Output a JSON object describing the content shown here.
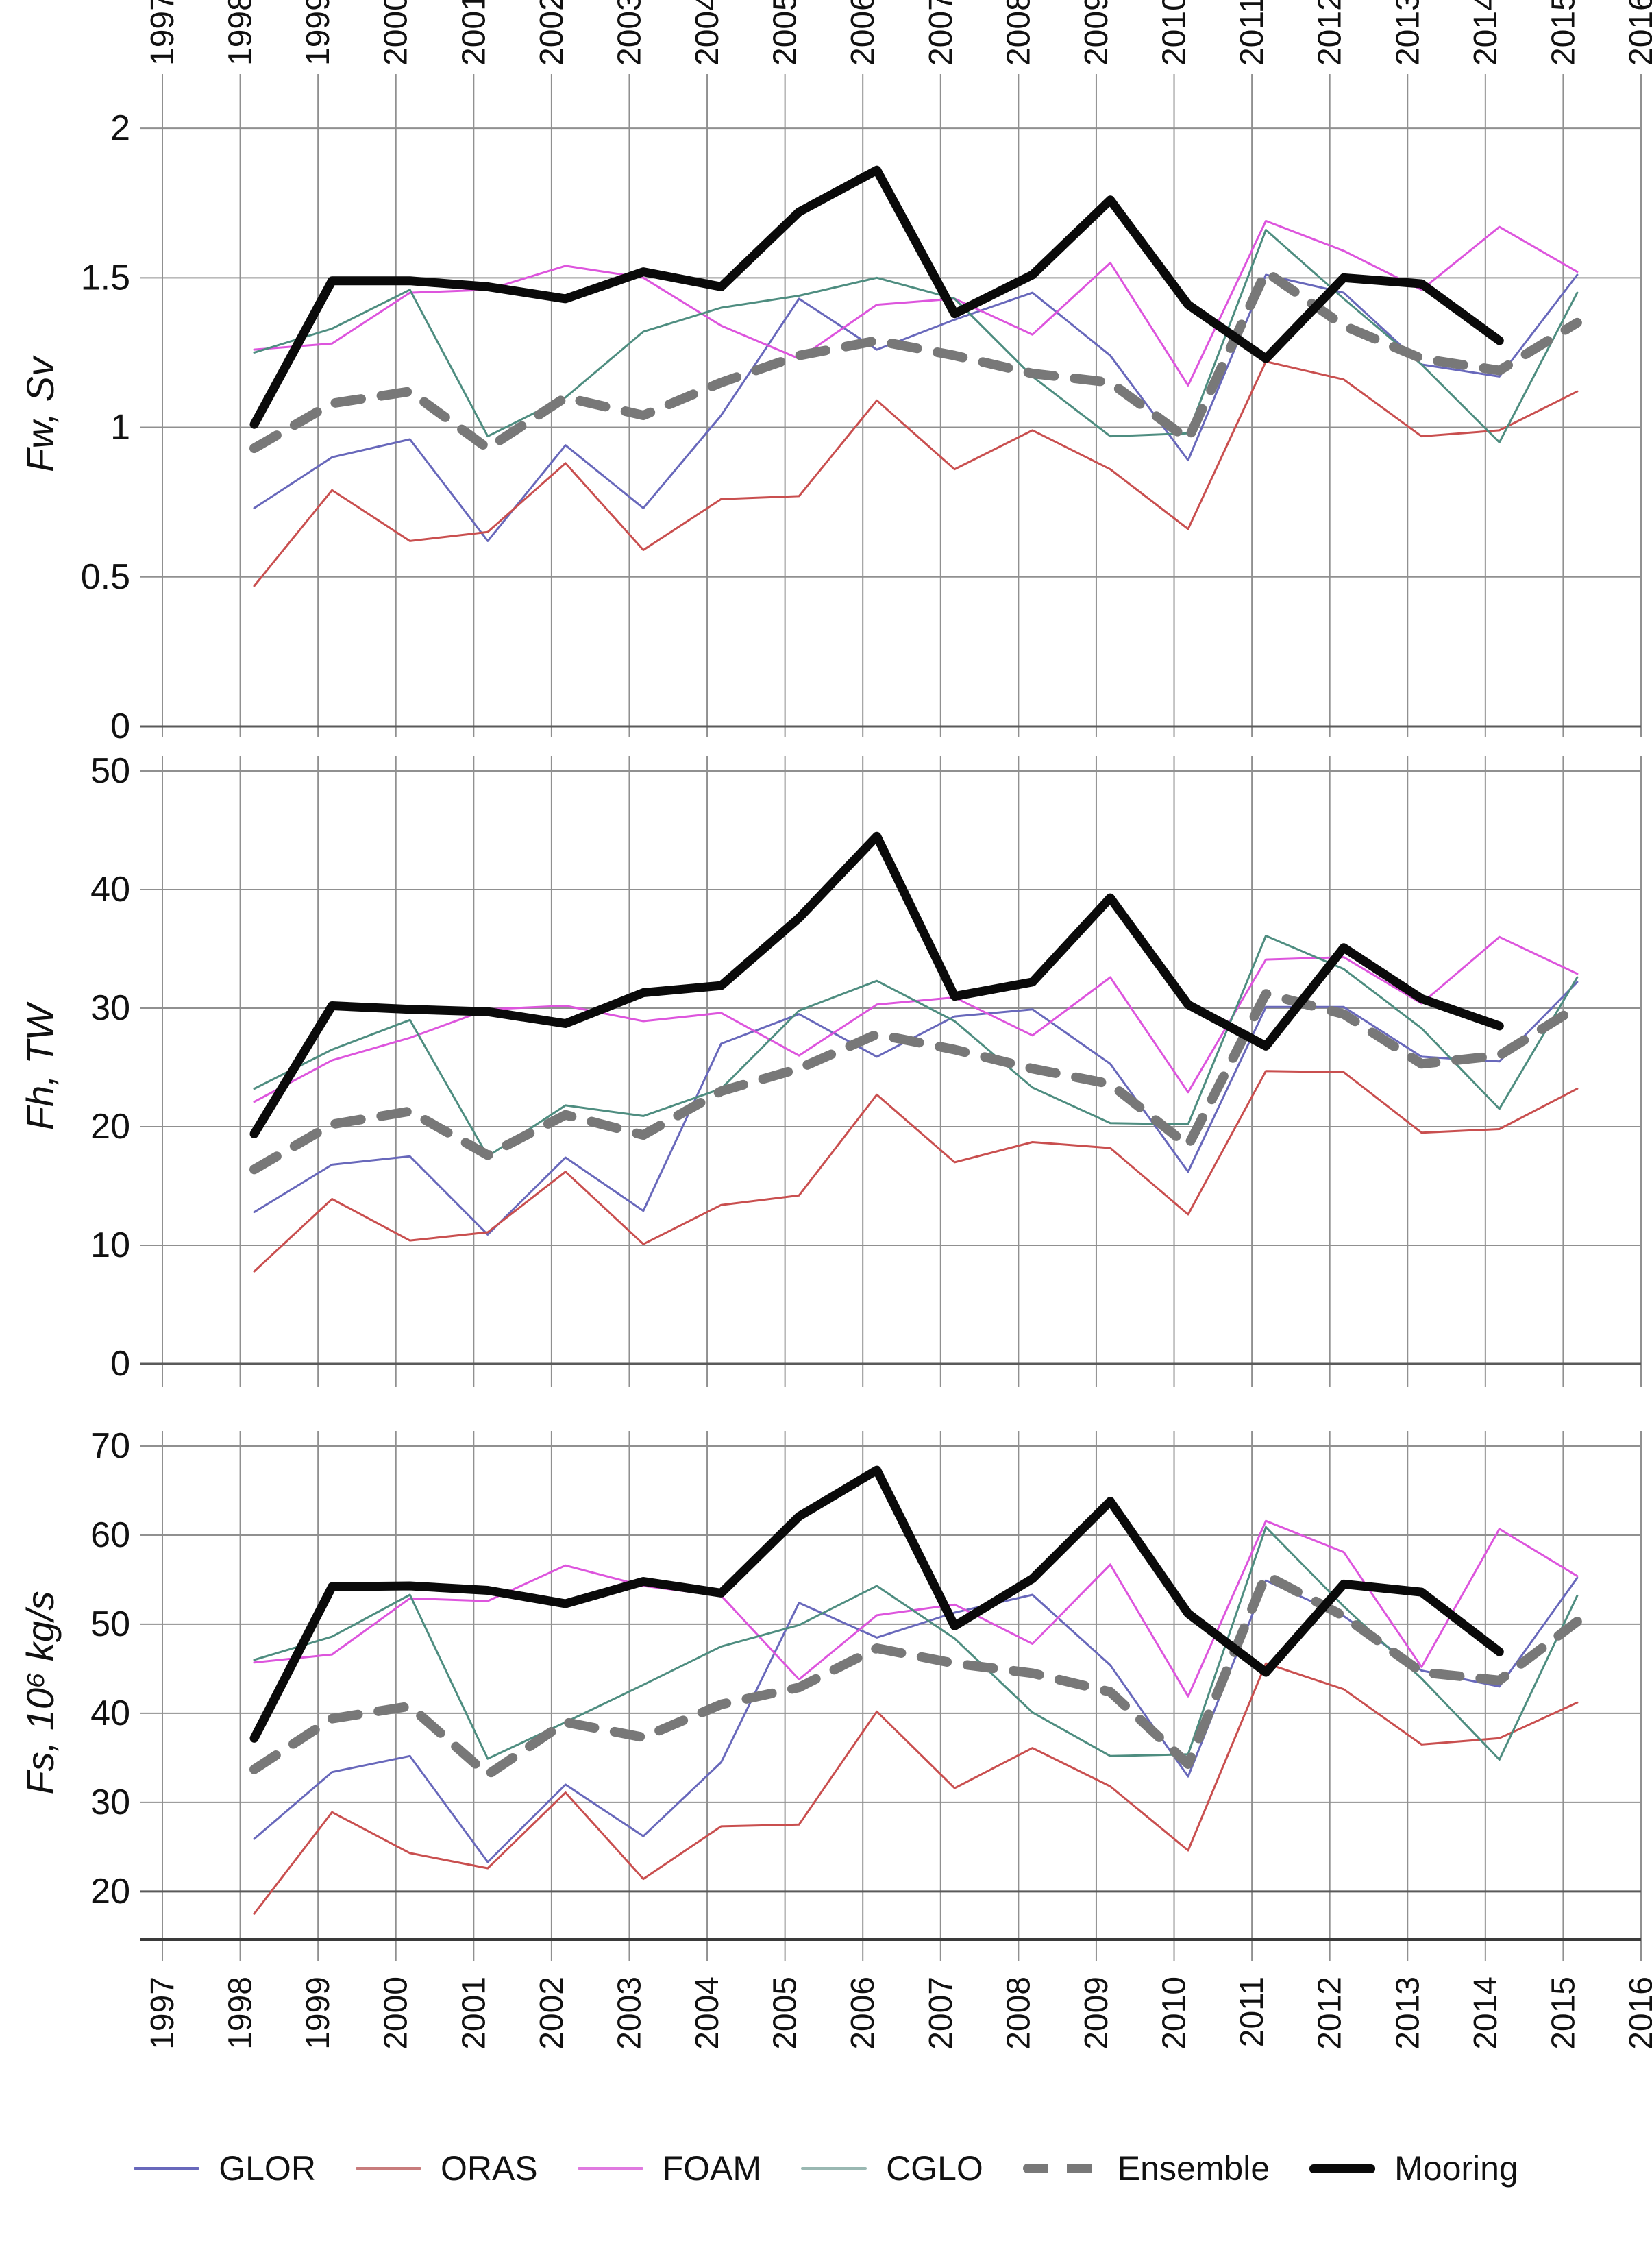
{
  "figure": {
    "type_note": "three stacked annual time-series panels, Arctic gateway fluxes, models vs mooring",
    "background": "#ffffff",
    "grid_color": "#909090",
    "axis_color": "#4a4a4a",
    "text_color": "#111111"
  },
  "chart_data": [
    {
      "type": "line",
      "panel": "top",
      "ylabel": "Fw, Sv",
      "ylim": [
        0,
        2.085
      ],
      "yticks": [
        2,
        1.5,
        1,
        0.5,
        0
      ],
      "ytick_labels": [
        "2",
        "1.5",
        "1",
        "0.5",
        "0"
      ],
      "xlim": [
        1997,
        2016
      ],
      "xticks": [
        1997,
        1998,
        1999,
        2000,
        2001,
        2002,
        2003,
        2004,
        2005,
        2006,
        2007,
        2008,
        2009,
        2010,
        2011,
        2012,
        2013,
        2014,
        2015,
        2016
      ],
      "grid": true,
      "x": [
        1998,
        1999,
        2000,
        2001,
        2002,
        2003,
        2004,
        2005,
        2006,
        2007,
        2008,
        2009,
        2010,
        2011,
        2012,
        2013,
        2014,
        2015
      ],
      "series": [
        {
          "name": "GLOR",
          "color": "#6868bb",
          "width": 3,
          "dash": null,
          "values": [
            0.73,
            0.9,
            0.96,
            0.62,
            0.94,
            0.73,
            1.04,
            1.43,
            1.26,
            1.36,
            1.45,
            1.24,
            0.89,
            1.51,
            1.45,
            1.21,
            1.17,
            1.51
          ]
        },
        {
          "name": "ORAS",
          "color": "#c94f4f",
          "width": 3,
          "dash": null,
          "values": [
            0.47,
            0.79,
            0.62,
            0.65,
            0.88,
            0.59,
            0.76,
            0.77,
            1.09,
            0.86,
            0.99,
            0.86,
            0.66,
            1.22,
            1.16,
            0.97,
            0.99,
            1.12
          ]
        },
        {
          "name": "FOAM",
          "color": "#dd55dd",
          "width": 3,
          "dash": null,
          "values": [
            1.26,
            1.28,
            1.45,
            1.46,
            1.54,
            1.5,
            1.34,
            1.23,
            1.41,
            1.43,
            1.31,
            1.55,
            1.14,
            1.69,
            1.59,
            1.46,
            1.67,
            1.52
          ]
        },
        {
          "name": "CGLO",
          "color": "#4e8d80",
          "width": 3,
          "dash": null,
          "values": [
            1.25,
            1.33,
            1.46,
            0.97,
            1.1,
            1.32,
            1.4,
            1.44,
            1.5,
            1.43,
            1.17,
            0.97,
            0.98,
            1.66,
            1.43,
            1.21,
            0.95,
            1.45
          ]
        },
        {
          "name": "Ensemble",
          "color": "#787878",
          "width": 14,
          "dash": "38 30",
          "values": [
            0.93,
            1.08,
            1.12,
            0.93,
            1.1,
            1.04,
            1.15,
            1.24,
            1.29,
            1.24,
            1.18,
            1.15,
            0.96,
            1.52,
            1.34,
            1.23,
            1.19,
            1.35
          ]
        },
        {
          "name": "Mooring",
          "color": "#0a0a0a",
          "width": 13,
          "dash": null,
          "values": [
            1.01,
            1.49,
            1.49,
            1.47,
            1.43,
            1.52,
            1.47,
            1.72,
            1.86,
            1.38,
            1.51,
            1.76,
            1.41,
            1.23,
            1.5,
            1.48,
            1.29,
            null
          ]
        }
      ]
    },
    {
      "type": "line",
      "panel": "middle",
      "ylabel": "Fh, TW",
      "ylim": [
        0,
        50
      ],
      "yticks": [
        50,
        40,
        30,
        20,
        10,
        0
      ],
      "ytick_labels": [
        "50",
        "40",
        "30",
        "20",
        "10",
        "0"
      ],
      "xlim": [
        1997,
        2016
      ],
      "xticks": [
        1997,
        1998,
        1999,
        2000,
        2001,
        2002,
        2003,
        2004,
        2005,
        2006,
        2007,
        2008,
        2009,
        2010,
        2011,
        2012,
        2013,
        2014,
        2015,
        2016
      ],
      "grid": true,
      "x": [
        1998,
        1999,
        2000,
        2001,
        2002,
        2003,
        2004,
        2005,
        2006,
        2007,
        2008,
        2009,
        2010,
        2011,
        2012,
        2013,
        2014,
        2015
      ],
      "series": [
        {
          "name": "GLOR",
          "color": "#6868bb",
          "width": 3,
          "dash": null,
          "values": [
            12.8,
            16.8,
            17.5,
            10.9,
            17.4,
            12.9,
            27.0,
            29.5,
            25.9,
            29.3,
            29.9,
            25.3,
            16.2,
            30.1,
            30.1,
            25.9,
            25.5,
            32.2
          ]
        },
        {
          "name": "ORAS",
          "color": "#c94f4f",
          "width": 3,
          "dash": null,
          "values": [
            7.8,
            13.9,
            10.4,
            11.1,
            16.2,
            10.1,
            13.4,
            14.2,
            22.7,
            17.0,
            18.7,
            18.2,
            12.6,
            24.7,
            24.6,
            19.5,
            19.8,
            23.2
          ]
        },
        {
          "name": "FOAM",
          "color": "#dd55dd",
          "width": 3,
          "dash": null,
          "values": [
            22.1,
            25.6,
            27.5,
            29.9,
            30.2,
            28.9,
            29.6,
            26.0,
            30.3,
            30.9,
            27.7,
            32.6,
            22.9,
            34.1,
            34.3,
            30.4,
            36.0,
            32.9
          ]
        },
        {
          "name": "CGLO",
          "color": "#4e8d80",
          "width": 3,
          "dash": null,
          "values": [
            23.2,
            26.5,
            29.0,
            17.5,
            21.8,
            20.9,
            23.2,
            29.8,
            32.3,
            28.9,
            23.3,
            20.3,
            20.2,
            36.1,
            33.3,
            28.3,
            21.5,
            32.6
          ]
        },
        {
          "name": "Ensemble",
          "color": "#787878",
          "width": 14,
          "dash": "38 30",
          "values": [
            16.4,
            20.2,
            21.3,
            17.6,
            21.0,
            19.3,
            23.0,
            24.9,
            27.8,
            26.5,
            24.9,
            23.6,
            18.4,
            31.2,
            29.5,
            25.3,
            26.0,
            30.1
          ]
        },
        {
          "name": "Mooring",
          "color": "#0a0a0a",
          "width": 13,
          "dash": null,
          "values": [
            19.4,
            30.2,
            29.9,
            29.7,
            28.7,
            31.3,
            31.9,
            37.6,
            44.5,
            31.0,
            32.2,
            39.3,
            30.3,
            26.8,
            35.1,
            30.8,
            28.5,
            null
          ]
        }
      ]
    },
    {
      "type": "line",
      "panel": "bottom",
      "ylabel": "Fs, 10⁶ kg/s",
      "ylim": [
        14.6,
        70
      ],
      "yticks": [
        70,
        60,
        50,
        40,
        30,
        20
      ],
      "ytick_labels": [
        "70",
        "60",
        "50",
        "40",
        "30",
        "20"
      ],
      "xlim": [
        1997,
        2016
      ],
      "xticks": [
        1997,
        1998,
        1999,
        2000,
        2001,
        2002,
        2003,
        2004,
        2005,
        2006,
        2007,
        2008,
        2009,
        2010,
        2011,
        2012,
        2013,
        2014,
        2015,
        2016
      ],
      "grid": true,
      "x": [
        1998,
        1999,
        2000,
        2001,
        2002,
        2003,
        2004,
        2005,
        2006,
        2007,
        2008,
        2009,
        2010,
        2011,
        2012,
        2013,
        2014,
        2015
      ],
      "series": [
        {
          "name": "GLOR",
          "color": "#6868bb",
          "width": 3,
          "dash": null,
          "values": [
            25.9,
            33.4,
            35.2,
            23.3,
            32.0,
            26.2,
            34.5,
            52.4,
            48.5,
            51.3,
            53.3,
            45.4,
            32.9,
            54.9,
            50.9,
            44.8,
            43.0,
            55.2
          ]
        },
        {
          "name": "ORAS",
          "color": "#c94f4f",
          "width": 3,
          "dash": null,
          "values": [
            17.5,
            28.9,
            24.3,
            22.6,
            31.1,
            21.4,
            27.3,
            27.5,
            40.2,
            31.6,
            36.1,
            31.8,
            24.6,
            45.6,
            42.7,
            36.5,
            37.2,
            41.2
          ]
        },
        {
          "name": "FOAM",
          "color": "#dd55dd",
          "width": 3,
          "dash": null,
          "values": [
            45.7,
            46.6,
            52.9,
            52.6,
            56.6,
            54.3,
            53.2,
            43.8,
            51.0,
            52.2,
            47.8,
            56.7,
            41.9,
            61.6,
            58.1,
            45.2,
            60.7,
            55.4
          ]
        },
        {
          "name": "CGLO",
          "color": "#4e8d80",
          "width": 3,
          "dash": null,
          "values": [
            46.0,
            48.6,
            53.3,
            34.9,
            39.0,
            43.2,
            47.5,
            49.9,
            54.3,
            48.4,
            40.1,
            35.2,
            35.4,
            60.9,
            52.0,
            43.9,
            34.8,
            53.2
          ]
        },
        {
          "name": "Ensemble",
          "color": "#787878",
          "width": 14,
          "dash": "38 30",
          "values": [
            33.7,
            39.4,
            40.8,
            33.1,
            39.0,
            37.3,
            41.0,
            42.9,
            47.3,
            45.6,
            44.5,
            42.4,
            34.3,
            55.5,
            50.9,
            44.6,
            43.7,
            50.3
          ]
        },
        {
          "name": "Mooring",
          "color": "#0a0a0a",
          "width": 13,
          "dash": null,
          "values": [
            37.2,
            54.2,
            54.3,
            53.8,
            52.3,
            54.8,
            53.5,
            62.1,
            67.3,
            49.8,
            55.1,
            63.8,
            51.2,
            44.6,
            54.5,
            53.6,
            46.9,
            null
          ]
        }
      ]
    }
  ],
  "legend": {
    "position": "bottom-center",
    "items": [
      {
        "label": "GLOR",
        "color": "#6868bb",
        "style": "thin"
      },
      {
        "label": "ORAS",
        "color": "#c87c7c",
        "style": "thin"
      },
      {
        "label": "FOAM",
        "color": "#e07ae0",
        "style": "thin"
      },
      {
        "label": "CGLO",
        "color": "#9ab8b2",
        "style": "thin"
      },
      {
        "label": "Ensemble",
        "color": "#787878",
        "style": "dashed"
      },
      {
        "label": "Mooring",
        "color": "#0a0a0a",
        "style": "thick"
      }
    ]
  }
}
